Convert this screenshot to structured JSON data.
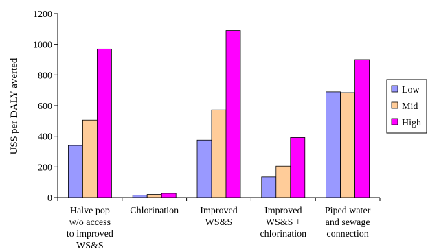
{
  "chart_data": {
    "type": "bar",
    "ylabel": "US$ per DALY averted",
    "ylim": [
      0,
      1200
    ],
    "yticks": [
      "0",
      "200",
      "400",
      "600",
      "800",
      "1000",
      "1200"
    ],
    "categories": [
      [
        "Halve pop",
        "w/o access",
        "to improved",
        "WS&S"
      ],
      [
        "Chlorination"
      ],
      [
        "Improved",
        "WS&S"
      ],
      [
        "Improved",
        "WS&S +",
        "chlorination"
      ],
      [
        "Piped water",
        "and sewage",
        "connection"
      ]
    ],
    "series": [
      {
        "name": "Low",
        "color": "#9999ff",
        "values": [
          340,
          15,
          375,
          135,
          690
        ]
      },
      {
        "name": "Mid",
        "color": "#ffcc99",
        "values": [
          505,
          20,
          572,
          205,
          685
        ]
      },
      {
        "name": "High",
        "color": "#ff00ff",
        "values": [
          970,
          27,
          1090,
          392,
          900
        ]
      }
    ],
    "legend_position": "right",
    "grid": false
  }
}
